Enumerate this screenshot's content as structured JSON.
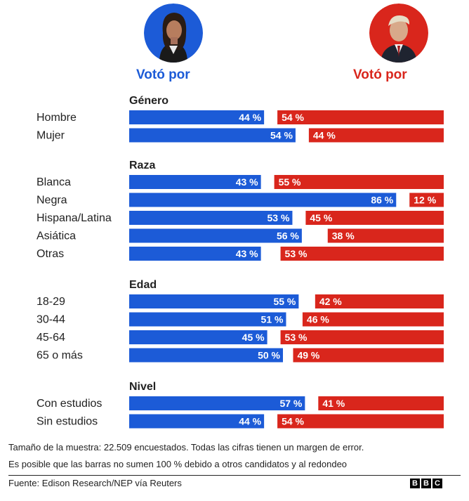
{
  "header": {
    "left_label": "Votó por",
    "right_label": "Votó por",
    "left_color": "#1c5bd7",
    "right_color": "#d9261c",
    "left_icon": "candidate-harris-portrait",
    "right_icon": "candidate-trump-portrait"
  },
  "chart_data": {
    "type": "bar",
    "orientation": "horizontal-diverging",
    "series": [
      {
        "color": "#1c5bd7"
      },
      {
        "color": "#d9261c"
      }
    ],
    "groups": [
      {
        "title": "Género",
        "rows": [
          {
            "label": "Hombre",
            "left": 44,
            "right": 54
          },
          {
            "label": "Mujer",
            "left": 54,
            "right": 44
          }
        ]
      },
      {
        "title": "Raza",
        "rows": [
          {
            "label": "Blanca",
            "left": 43,
            "right": 55
          },
          {
            "label": "Negra",
            "left": 86,
            "right": 12
          },
          {
            "label": "Hispana/Latina",
            "left": 53,
            "right": 45
          },
          {
            "label": "Asiática",
            "left": 56,
            "right": 38
          },
          {
            "label": "Otras",
            "left": 43,
            "right": 53
          }
        ]
      },
      {
        "title": "Edad",
        "rows": [
          {
            "label": "18-29",
            "left": 55,
            "right": 42
          },
          {
            "label": "30-44",
            "left": 51,
            "right": 46
          },
          {
            "label": "45-64",
            "left": 45,
            "right": 53
          },
          {
            "label": "65 o más",
            "left": 50,
            "right": 49
          }
        ]
      },
      {
        "title": "Nivel",
        "rows": [
          {
            "label": "Con estudios",
            "left": 57,
            "right": 41
          },
          {
            "label": "Sin estudios",
            "left": 44,
            "right": 54
          }
        ]
      }
    ],
    "value_suffix": " %",
    "xlim": [
      0,
      100
    ]
  },
  "footer": {
    "note1": "Tamaño de la muestra: 22.509 encuestados. Todas las cifras tienen un margen de error.",
    "note2": "Es posible que las barras no sumen 100 % debido a otros candidatos y al redondeo",
    "source": "Fuente: Edison Research/NEP vía Reuters",
    "logo": [
      "B",
      "B",
      "C"
    ]
  }
}
